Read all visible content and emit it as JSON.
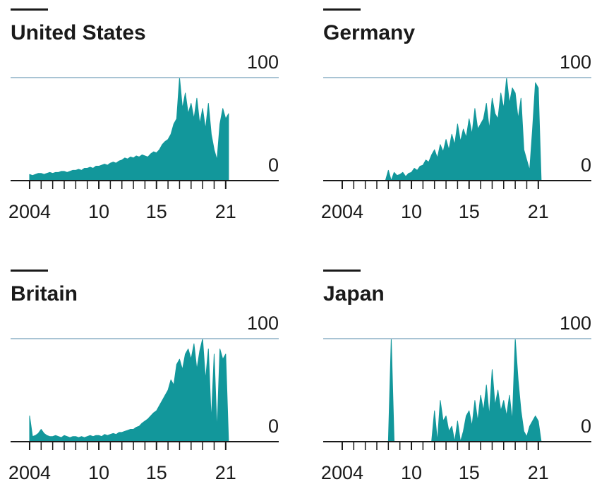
{
  "chart_data": [
    {
      "type": "area",
      "title": "United States",
      "color": "#12979b",
      "x": [
        2004,
        2004.25,
        2004.5,
        2004.75,
        2005,
        2005.25,
        2005.5,
        2005.75,
        2006,
        2006.25,
        2006.5,
        2006.75,
        2007,
        2007.25,
        2007.5,
        2007.75,
        2008,
        2008.25,
        2008.5,
        2008.75,
        2009,
        2009.25,
        2009.5,
        2009.75,
        2010,
        2010.25,
        2010.5,
        2010.75,
        2011,
        2011.25,
        2011.5,
        2011.75,
        2012,
        2012.25,
        2012.5,
        2012.75,
        2013,
        2013.25,
        2013.5,
        2013.75,
        2014,
        2014.25,
        2014.5,
        2014.75,
        2015,
        2015.25,
        2015.5,
        2015.75,
        2016,
        2016.25,
        2016.5,
        2016.75,
        2017,
        2017.25,
        2017.5,
        2017.75,
        2018,
        2018.25,
        2018.5,
        2018.75,
        2019,
        2019.25,
        2019.5,
        2019.75,
        2020,
        2020.25,
        2020.5,
        2020.75,
        2021,
        2021.25
      ],
      "values": [
        6,
        5,
        6,
        7,
        7,
        6,
        7,
        8,
        7,
        8,
        8,
        9,
        9,
        8,
        9,
        10,
        10,
        11,
        10,
        12,
        12,
        13,
        12,
        14,
        14,
        15,
        16,
        15,
        17,
        18,
        17,
        19,
        20,
        22,
        21,
        23,
        22,
        24,
        23,
        25,
        24,
        23,
        26,
        28,
        27,
        30,
        35,
        38,
        40,
        45,
        55,
        60,
        100,
        70,
        85,
        65,
        75,
        60,
        80,
        55,
        70,
        50,
        75,
        45,
        30,
        20,
        55,
        70,
        60,
        65
      ],
      "xlim": [
        2002.35,
        2025.6
      ],
      "ylim": [
        0,
        100
      ],
      "yticks": [
        0,
        100
      ],
      "xticks": [
        2004,
        {
          "value": 2010,
          "label": "10"
        },
        {
          "value": 2015,
          "label": "15"
        },
        {
          "value": 2021,
          "label": "21"
        }
      ],
      "minor_xticks": [
        2004,
        2005,
        2006,
        2007,
        2008,
        2009,
        2010,
        2011,
        2012,
        2013,
        2014,
        2015,
        2016,
        2017,
        2018,
        2019,
        2020,
        2021
      ]
    },
    {
      "type": "area",
      "title": "Germany",
      "color": "#12979b",
      "x": [
        2004,
        2004.25,
        2004.5,
        2004.75,
        2005,
        2005.25,
        2005.5,
        2005.75,
        2006,
        2006.25,
        2006.5,
        2006.75,
        2007,
        2007.25,
        2007.5,
        2007.75,
        2008,
        2008.25,
        2008.5,
        2008.75,
        2009,
        2009.25,
        2009.5,
        2009.75,
        2010,
        2010.25,
        2010.5,
        2010.75,
        2011,
        2011.25,
        2011.5,
        2011.75,
        2012,
        2012.25,
        2012.5,
        2012.75,
        2013,
        2013.25,
        2013.5,
        2013.75,
        2014,
        2014.25,
        2014.5,
        2014.75,
        2015,
        2015.25,
        2015.5,
        2015.75,
        2016,
        2016.25,
        2016.5,
        2016.75,
        2017,
        2017.25,
        2017.5,
        2017.75,
        2018,
        2018.25,
        2018.5,
        2018.75,
        2019,
        2019.25,
        2019.5,
        2019.75,
        2020,
        2020.25,
        2020.5,
        2020.75,
        2021,
        2021.25
      ],
      "values": [
        0,
        0,
        0,
        0,
        0,
        0,
        0,
        0,
        0,
        0,
        0,
        0,
        0,
        0,
        0,
        0,
        10,
        0,
        8,
        5,
        6,
        8,
        4,
        7,
        8,
        12,
        10,
        14,
        15,
        20,
        18,
        25,
        30,
        22,
        35,
        28,
        40,
        30,
        45,
        35,
        55,
        38,
        50,
        42,
        60,
        45,
        70,
        50,
        55,
        60,
        75,
        50,
        80,
        65,
        60,
        85,
        70,
        100,
        75,
        90,
        85,
        60,
        80,
        30,
        20,
        10,
        50,
        95,
        90,
        0
      ],
      "xlim": [
        2002.35,
        2025.6
      ],
      "ylim": [
        0,
        100
      ],
      "yticks": [
        0,
        100
      ],
      "xticks": [
        2004,
        {
          "value": 2010,
          "label": "10"
        },
        {
          "value": 2015,
          "label": "15"
        },
        {
          "value": 2021,
          "label": "21"
        }
      ],
      "minor_xticks": [
        2004,
        2005,
        2006,
        2007,
        2008,
        2009,
        2010,
        2011,
        2012,
        2013,
        2014,
        2015,
        2016,
        2017,
        2018,
        2019,
        2020,
        2021
      ]
    },
    {
      "type": "area",
      "title": "Britain",
      "color": "#12979b",
      "x": [
        2004,
        2004.25,
        2004.5,
        2004.75,
        2005,
        2005.25,
        2005.5,
        2005.75,
        2006,
        2006.25,
        2006.5,
        2006.75,
        2007,
        2007.25,
        2007.5,
        2007.75,
        2008,
        2008.25,
        2008.5,
        2008.75,
        2009,
        2009.25,
        2009.5,
        2009.75,
        2010,
        2010.25,
        2010.5,
        2010.75,
        2011,
        2011.25,
        2011.5,
        2011.75,
        2012,
        2012.25,
        2012.5,
        2012.75,
        2013,
        2013.25,
        2013.5,
        2013.75,
        2014,
        2014.25,
        2014.5,
        2014.75,
        2015,
        2015.25,
        2015.5,
        2015.75,
        2016,
        2016.25,
        2016.5,
        2016.75,
        2017,
        2017.25,
        2017.5,
        2017.75,
        2018,
        2018.25,
        2018.5,
        2018.75,
        2019,
        2019.25,
        2019.5,
        2019.75,
        2020,
        2020.25,
        2020.5,
        2020.75,
        2021,
        2021.25
      ],
      "values": [
        25,
        5,
        6,
        8,
        12,
        8,
        6,
        5,
        5,
        6,
        5,
        4,
        6,
        5,
        4,
        5,
        5,
        4,
        5,
        4,
        5,
        6,
        5,
        6,
        6,
        5,
        7,
        6,
        7,
        8,
        7,
        9,
        9,
        10,
        11,
        12,
        12,
        14,
        15,
        18,
        20,
        22,
        25,
        28,
        30,
        35,
        40,
        45,
        50,
        60,
        55,
        75,
        80,
        70,
        85,
        90,
        80,
        95,
        70,
        88,
        100,
        60,
        90,
        20,
        85,
        10,
        90,
        80,
        85,
        0
      ],
      "xlim": [
        2002.35,
        2025.6
      ],
      "ylim": [
        0,
        100
      ],
      "yticks": [
        0,
        100
      ],
      "xticks": [
        2004,
        {
          "value": 2010,
          "label": "10"
        },
        {
          "value": 2015,
          "label": "15"
        },
        {
          "value": 2021,
          "label": "21"
        }
      ],
      "minor_xticks": [
        2004,
        2005,
        2006,
        2007,
        2008,
        2009,
        2010,
        2011,
        2012,
        2013,
        2014,
        2015,
        2016,
        2017,
        2018,
        2019,
        2020,
        2021
      ]
    },
    {
      "type": "area",
      "title": "Japan",
      "color": "#12979b",
      "x": [
        2004,
        2004.25,
        2004.5,
        2004.75,
        2005,
        2005.25,
        2005.5,
        2005.75,
        2006,
        2006.25,
        2006.5,
        2006.75,
        2007,
        2007.25,
        2007.5,
        2007.75,
        2008,
        2008.25,
        2008.5,
        2008.75,
        2009,
        2009.25,
        2009.5,
        2009.75,
        2010,
        2010.25,
        2010.5,
        2010.75,
        2011,
        2011.25,
        2011.5,
        2011.75,
        2012,
        2012.25,
        2012.5,
        2012.75,
        2013,
        2013.25,
        2013.5,
        2013.75,
        2014,
        2014.25,
        2014.5,
        2014.75,
        2015,
        2015.25,
        2015.5,
        2015.75,
        2016,
        2016.25,
        2016.5,
        2016.75,
        2017,
        2017.25,
        2017.5,
        2017.75,
        2018,
        2018.25,
        2018.5,
        2018.75,
        2019,
        2019.25,
        2019.5,
        2019.75,
        2020,
        2020.25,
        2020.5,
        2020.75,
        2021,
        2021.25
      ],
      "values": [
        0,
        0,
        0,
        0,
        0,
        0,
        0,
        0,
        0,
        0,
        0,
        0,
        0,
        0,
        0,
        0,
        0,
        100,
        0,
        0,
        0,
        0,
        0,
        0,
        0,
        0,
        0,
        0,
        0,
        0,
        0,
        0,
        30,
        0,
        40,
        20,
        25,
        10,
        15,
        0,
        20,
        0,
        10,
        25,
        30,
        15,
        40,
        20,
        45,
        30,
        55,
        25,
        70,
        35,
        50,
        30,
        40,
        25,
        45,
        20,
        100,
        60,
        30,
        10,
        5,
        15,
        20,
        25,
        20,
        0
      ],
      "xlim": [
        2002.35,
        2025.6
      ],
      "ylim": [
        0,
        100
      ],
      "yticks": [
        0,
        100
      ],
      "xticks": [
        2004,
        {
          "value": 2010,
          "label": "10"
        },
        {
          "value": 2015,
          "label": "15"
        },
        {
          "value": 2021,
          "label": "21"
        }
      ],
      "minor_xticks": [
        2004,
        2005,
        2006,
        2007,
        2008,
        2009,
        2010,
        2011,
        2012,
        2013,
        2014,
        2015,
        2016,
        2017,
        2018,
        2019,
        2020,
        2021
      ]
    }
  ]
}
